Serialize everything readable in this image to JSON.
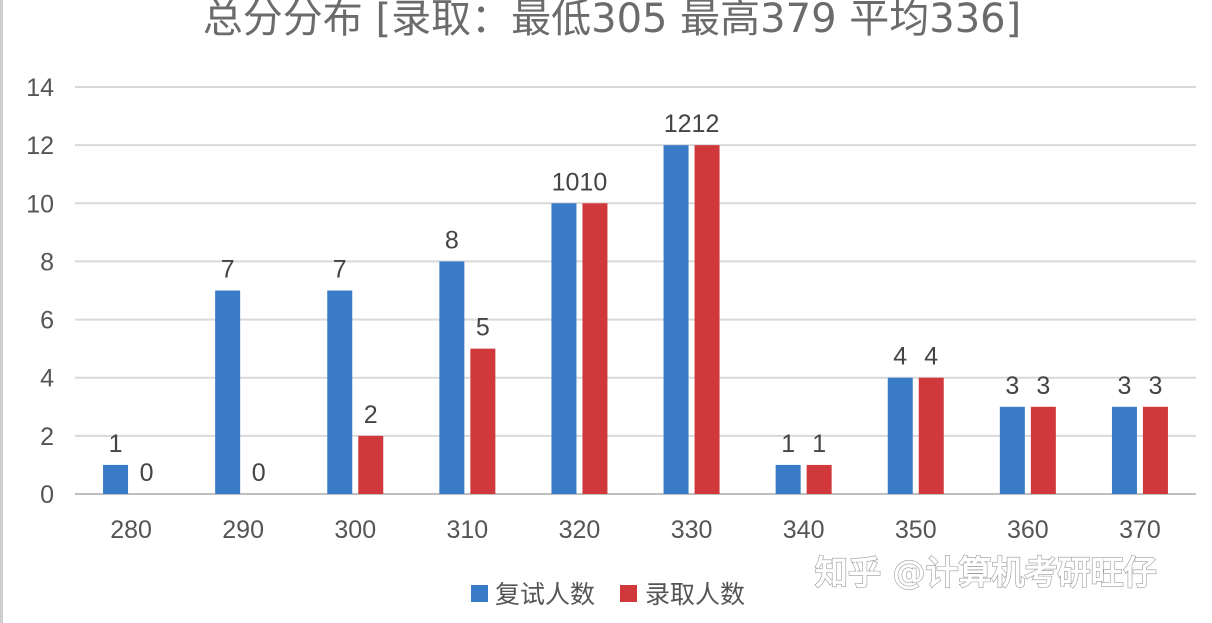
{
  "chart_data": {
    "type": "bar",
    "title": "总分分布 [录取：最低305 最高379 平均336]",
    "categories": [
      "280",
      "290",
      "300",
      "310",
      "320",
      "330",
      "340",
      "350",
      "360",
      "370"
    ],
    "series": [
      {
        "name": "复试人数",
        "values": [
          1,
          7,
          7,
          8,
          10,
          12,
          1,
          4,
          3,
          3
        ],
        "color": "#3a7bc8"
      },
      {
        "name": "录取人数",
        "values": [
          0,
          0,
          2,
          5,
          10,
          12,
          1,
          4,
          3,
          3
        ],
        "color": "#d0383c"
      }
    ],
    "data_labels": {
      "series_0": [
        "1",
        "7",
        "7",
        "8",
        "1010",
        "1212",
        "1",
        "4",
        "3",
        "3"
      ],
      "series_1": [
        "0",
        "0",
        "2",
        "5",
        "",
        "",
        "1",
        "4",
        "3",
        "3"
      ]
    },
    "ylim": [
      0,
      14
    ],
    "y_ticks": [
      0,
      2,
      4,
      6,
      8,
      10,
      12,
      14
    ],
    "grid": true,
    "legend_position": "bottom",
    "xlabel": "",
    "ylabel": ""
  },
  "watermark": {
    "text": "知乎 @计算机考研旺仔"
  },
  "colors": {
    "grid": "#d9d9d9",
    "axis": "#bfbfbf"
  }
}
